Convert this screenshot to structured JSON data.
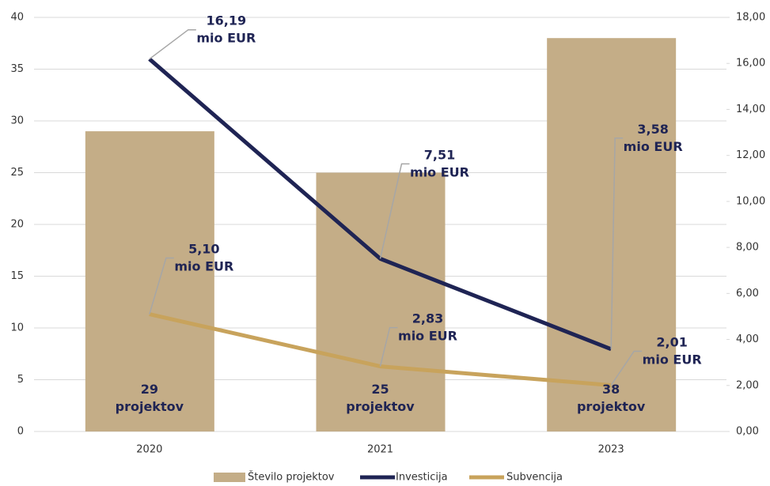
{
  "chart_data": {
    "type": "bar",
    "categories": [
      "2020",
      "2021",
      "2023"
    ],
    "series": [
      {
        "name": "Število projektov",
        "type": "bar",
        "color": "#c4ad87",
        "values": [
          29,
          25,
          38
        ],
        "value_labels": [
          "29 projektov",
          "25 projektov",
          "38 projektov"
        ]
      },
      {
        "name": "Investicija",
        "type": "line",
        "axis": "y2",
        "color": "#1f2454",
        "values": [
          16.19,
          7.51,
          3.58
        ],
        "value_labels": [
          "16,19 mio EUR",
          "7,51 mio EUR",
          "3,58 mio EUR"
        ]
      },
      {
        "name": "Subvencija",
        "type": "line",
        "axis": "y2",
        "color": "#c8a35c",
        "values": [
          5.1,
          2.83,
          2.01
        ],
        "value_labels": [
          "5,10 mio EUR",
          "2,83 mio EUR",
          "2,01 mio EUR"
        ]
      }
    ],
    "ylim": [
      0,
      40
    ],
    "yticks": [
      0,
      5,
      10,
      15,
      20,
      25,
      30,
      35,
      40
    ],
    "y2lim": [
      0,
      18
    ],
    "y2ticks": [
      {
        "value": 0,
        "label": "0,00"
      },
      {
        "value": 2,
        "label": "2,00"
      },
      {
        "value": 4,
        "label": "4,00"
      },
      {
        "value": 6,
        "label": "6,00"
      },
      {
        "value": 8,
        "label": "8,00"
      },
      {
        "value": 10,
        "label": "10,00"
      },
      {
        "value": 12,
        "label": "12,00"
      },
      {
        "value": 14,
        "label": "14,00"
      },
      {
        "value": 16,
        "label": "16,00"
      },
      {
        "value": 18,
        "label": "18,00"
      }
    ],
    "grid": true,
    "legend": "bottom"
  }
}
